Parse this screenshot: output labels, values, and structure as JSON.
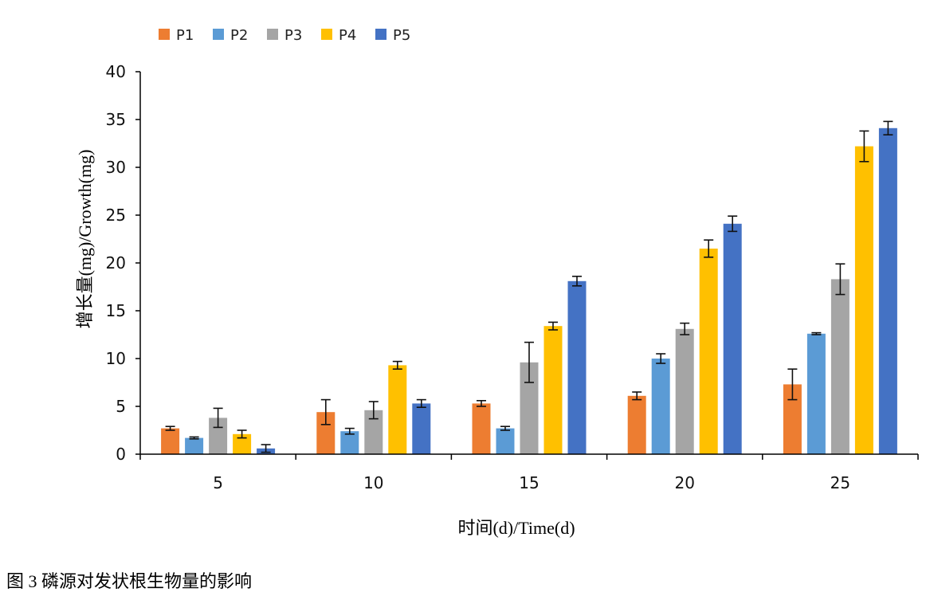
{
  "caption": "图 3 磷源对发状根生物量的影响",
  "chart_data": {
    "type": "bar",
    "title": "",
    "xlabel": "时间(d)/Time(d)",
    "ylabel": "增长量(mg)/Growth(mg)",
    "ylim": [
      0,
      40
    ],
    "yticks": [
      "0",
      "5",
      "10",
      "15",
      "20",
      "25",
      "30",
      "35",
      "40"
    ],
    "categories": [
      "5",
      "10",
      "15",
      "20",
      "25"
    ],
    "legend_position": "top-left",
    "grid": false,
    "series": [
      {
        "name": "P1",
        "color": "#ED7D31",
        "values": [
          2.7,
          4.4,
          5.3,
          6.1,
          7.3
        ],
        "errors": [
          0.2,
          1.3,
          0.3,
          0.4,
          1.6
        ]
      },
      {
        "name": "P2",
        "color": "#5B9BD5",
        "values": [
          1.7,
          2.4,
          2.7,
          10.0,
          12.6
        ],
        "errors": [
          0.1,
          0.3,
          0.2,
          0.5,
          0.1
        ]
      },
      {
        "name": "P3",
        "color": "#A5A5A5",
        "values": [
          3.8,
          4.6,
          9.6,
          13.1,
          18.3
        ],
        "errors": [
          1.0,
          0.9,
          2.1,
          0.6,
          1.6
        ]
      },
      {
        "name": "P4",
        "color": "#FFC000",
        "values": [
          2.1,
          9.3,
          13.4,
          21.5,
          32.2
        ],
        "errors": [
          0.4,
          0.4,
          0.4,
          0.9,
          1.6
        ]
      },
      {
        "name": "P5",
        "color": "#4472C4",
        "values": [
          0.6,
          5.3,
          18.1,
          24.1,
          34.1
        ],
        "errors": [
          0.4,
          0.4,
          0.5,
          0.8,
          0.7
        ]
      }
    ]
  }
}
